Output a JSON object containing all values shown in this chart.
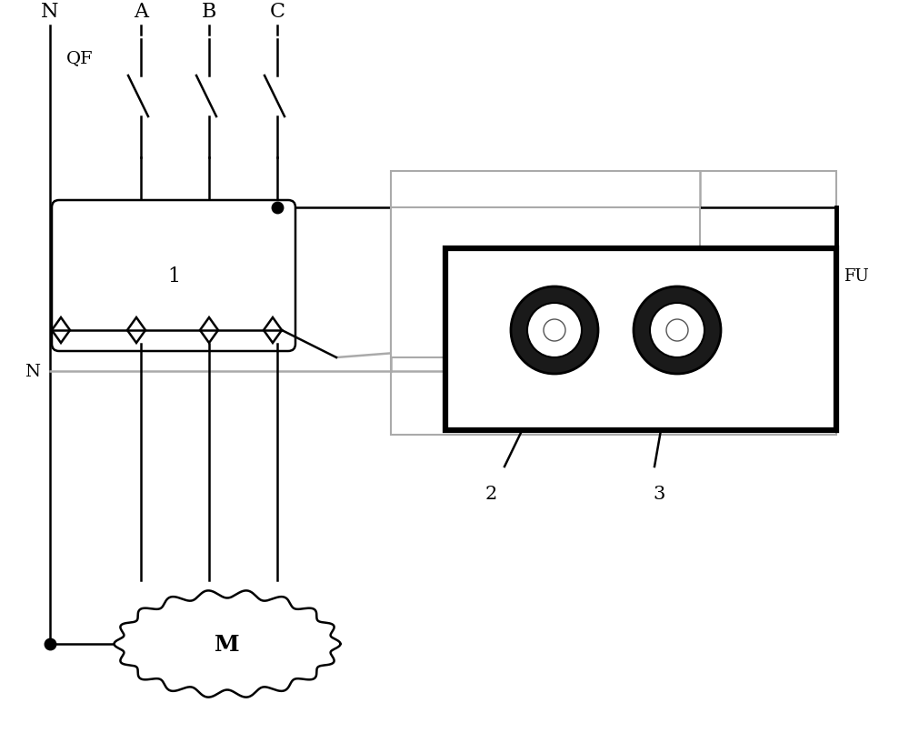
{
  "bg_color": "#ffffff",
  "line_color": "#000000",
  "gray_color": "#aaaaaa",
  "labels": {
    "N_top": "N",
    "A_top": "A",
    "B_top": "B",
    "C_top": "C",
    "QF": "QF",
    "N_mid": "N",
    "label1": "1",
    "label2": "2",
    "label3": "3",
    "FU": "FU",
    "M_label": "M"
  },
  "figsize": [
    10.0,
    8.29
  ],
  "dpi": 100
}
